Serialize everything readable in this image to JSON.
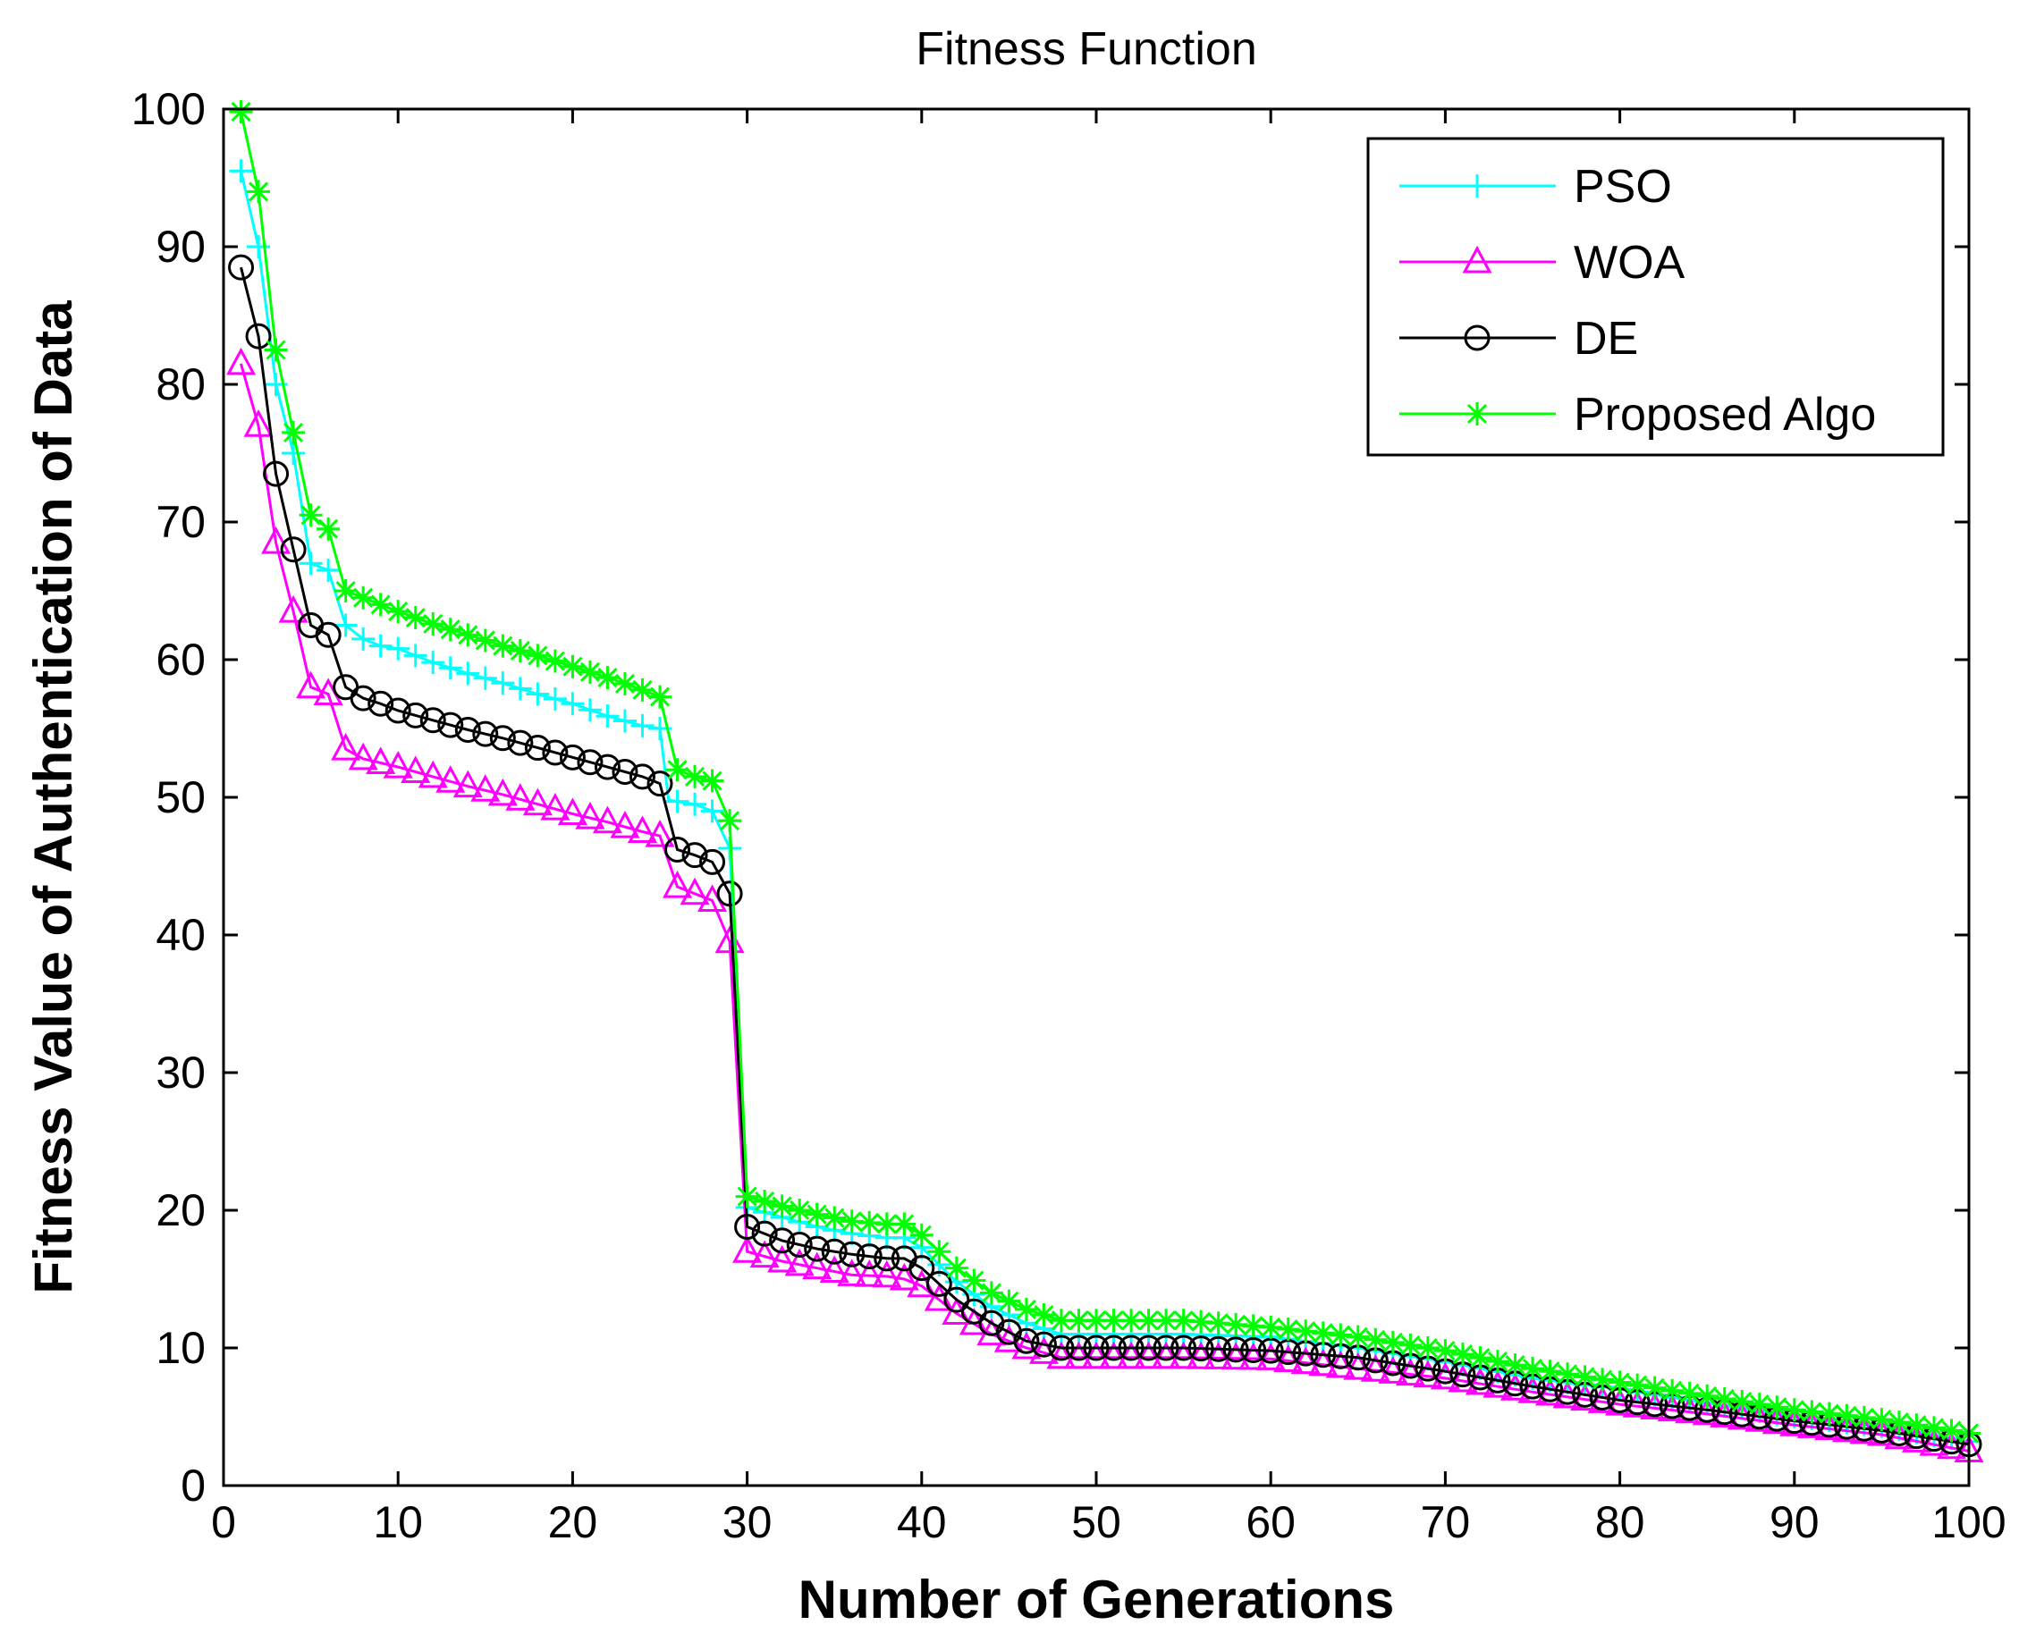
{
  "chart_data": {
    "type": "line",
    "title": "Fitness Function",
    "xlabel": "Number of Generations",
    "ylabel": "Fitness Value of Authentication of Data",
    "xlim": [
      0,
      100
    ],
    "ylim": [
      0,
      100
    ],
    "xticks": [
      0,
      10,
      20,
      30,
      40,
      50,
      60,
      70,
      80,
      90,
      100
    ],
    "yticks": [
      0,
      10,
      20,
      30,
      40,
      50,
      60,
      70,
      80,
      90,
      100
    ],
    "grid": false,
    "legend_position": "top-right",
    "series": [
      {
        "name": "PSO",
        "color": "#00ffff",
        "marker": "plus",
        "points": [
          [
            1,
            95.5
          ],
          [
            2,
            90
          ],
          [
            3,
            80
          ],
          [
            4,
            75
          ],
          [
            5,
            67
          ],
          [
            6,
            66.5
          ],
          [
            7,
            62.5
          ],
          [
            8,
            61.5
          ],
          [
            9,
            61
          ],
          [
            10,
            60.8
          ],
          [
            12,
            59.8
          ],
          [
            14,
            59
          ],
          [
            16,
            58.3
          ],
          [
            18,
            57.5
          ],
          [
            20,
            56.8
          ],
          [
            22,
            55.9
          ],
          [
            24,
            55.2
          ],
          [
            25,
            55
          ],
          [
            25.5,
            49.8
          ],
          [
            27,
            49.5
          ],
          [
            28,
            49
          ],
          [
            29,
            46.3
          ],
          [
            30,
            20.2
          ],
          [
            32,
            19.5
          ],
          [
            34,
            18.8
          ],
          [
            36,
            18.3
          ],
          [
            38,
            18
          ],
          [
            39,
            18
          ],
          [
            40,
            17.3
          ],
          [
            42,
            14.8
          ],
          [
            44,
            13
          ],
          [
            46,
            11.8
          ],
          [
            48,
            11
          ],
          [
            50,
            11
          ],
          [
            55,
            11
          ],
          [
            60,
            10.8
          ],
          [
            65,
            10
          ],
          [
            70,
            9
          ],
          [
            75,
            7.8
          ],
          [
            80,
            7
          ],
          [
            85,
            6
          ],
          [
            90,
            5
          ],
          [
            95,
            4.3
          ],
          [
            100,
            3.2
          ]
        ]
      },
      {
        "name": "WOA",
        "color": "#ff00ff",
        "marker": "triangle",
        "points": [
          [
            1,
            81.5
          ],
          [
            2,
            77
          ],
          [
            3,
            68.5
          ],
          [
            4,
            63.5
          ],
          [
            5,
            58
          ],
          [
            6,
            57.5
          ],
          [
            7,
            53.5
          ],
          [
            8,
            52.8
          ],
          [
            9,
            52.5
          ],
          [
            10,
            52.2
          ],
          [
            12,
            51.5
          ],
          [
            14,
            50.8
          ],
          [
            16,
            50.2
          ],
          [
            18,
            49.5
          ],
          [
            20,
            48.8
          ],
          [
            22,
            48.2
          ],
          [
            24,
            47.5
          ],
          [
            25,
            47.2
          ],
          [
            26,
            43.5
          ],
          [
            27,
            43
          ],
          [
            28,
            42.5
          ],
          [
            29,
            39.5
          ],
          [
            30,
            17
          ],
          [
            32,
            16.3
          ],
          [
            34,
            15.8
          ],
          [
            36,
            15.3
          ],
          [
            38,
            15.2
          ],
          [
            39,
            15
          ],
          [
            40,
            14.5
          ],
          [
            42,
            12.5
          ],
          [
            44,
            11
          ],
          [
            46,
            10
          ],
          [
            48,
            9.3
          ],
          [
            50,
            9.3
          ],
          [
            55,
            9.3
          ],
          [
            60,
            9.2
          ],
          [
            65,
            8.5
          ],
          [
            70,
            7.8
          ],
          [
            75,
            6.8
          ],
          [
            80,
            5.9
          ],
          [
            85,
            5.2
          ],
          [
            90,
            4.4
          ],
          [
            95,
            3.7
          ],
          [
            100,
            2.5
          ]
        ]
      },
      {
        "name": "DE",
        "color": "#000000",
        "marker": "circle",
        "points": [
          [
            1,
            88.5
          ],
          [
            2,
            83.5
          ],
          [
            3,
            73.5
          ],
          [
            4,
            68
          ],
          [
            5,
            62.5
          ],
          [
            6,
            61.8
          ],
          [
            7,
            58
          ],
          [
            8,
            57.2
          ],
          [
            9,
            56.8
          ],
          [
            10,
            56.3
          ],
          [
            12,
            55.6
          ],
          [
            14,
            54.9
          ],
          [
            16,
            54.3
          ],
          [
            18,
            53.6
          ],
          [
            20,
            52.9
          ],
          [
            22,
            52.2
          ],
          [
            24,
            51.5
          ],
          [
            25,
            51
          ],
          [
            26,
            46.2
          ],
          [
            27,
            45.8
          ],
          [
            28,
            45.3
          ],
          [
            29,
            43
          ],
          [
            30,
            18.8
          ],
          [
            32,
            17.8
          ],
          [
            34,
            17.2
          ],
          [
            36,
            16.8
          ],
          [
            38,
            16.5
          ],
          [
            39,
            16.5
          ],
          [
            40,
            15.8
          ],
          [
            42,
            13.5
          ],
          [
            44,
            11.8
          ],
          [
            46,
            10.5
          ],
          [
            48,
            10
          ],
          [
            50,
            10
          ],
          [
            55,
            10
          ],
          [
            60,
            9.8
          ],
          [
            65,
            9.3
          ],
          [
            70,
            8.3
          ],
          [
            75,
            7.2
          ],
          [
            80,
            6.2
          ],
          [
            85,
            5.5
          ],
          [
            90,
            4.7
          ],
          [
            95,
            4
          ],
          [
            100,
            3
          ]
        ]
      },
      {
        "name": "Proposed Algo",
        "color": "#00ff00",
        "marker": "star",
        "points": [
          [
            1,
            99.8
          ],
          [
            2,
            94
          ],
          [
            3,
            82.5
          ],
          [
            4,
            76.5
          ],
          [
            5,
            70.5
          ],
          [
            6,
            69.5
          ],
          [
            7,
            65
          ],
          [
            8,
            64.5
          ],
          [
            9,
            64
          ],
          [
            10,
            63.5
          ],
          [
            12,
            62.6
          ],
          [
            14,
            61.8
          ],
          [
            16,
            61
          ],
          [
            18,
            60.3
          ],
          [
            20,
            59.5
          ],
          [
            22,
            58.7
          ],
          [
            24,
            57.8
          ],
          [
            25,
            57.3
          ],
          [
            26,
            52
          ],
          [
            27,
            51.5
          ],
          [
            28,
            51.2
          ],
          [
            29,
            48.3
          ],
          [
            30,
            21
          ],
          [
            32,
            20.3
          ],
          [
            34,
            19.7
          ],
          [
            36,
            19.2
          ],
          [
            38,
            19
          ],
          [
            39,
            19
          ],
          [
            40,
            18.2
          ],
          [
            42,
            15.8
          ],
          [
            44,
            14
          ],
          [
            46,
            12.8
          ],
          [
            48,
            12
          ],
          [
            50,
            12
          ],
          [
            55,
            12
          ],
          [
            60,
            11.5
          ],
          [
            65,
            10.8
          ],
          [
            70,
            9.8
          ],
          [
            75,
            8.5
          ],
          [
            80,
            7.5
          ],
          [
            85,
            6.5
          ],
          [
            90,
            5.5
          ],
          [
            95,
            4.8
          ],
          [
            100,
            3.8
          ]
        ]
      }
    ]
  }
}
